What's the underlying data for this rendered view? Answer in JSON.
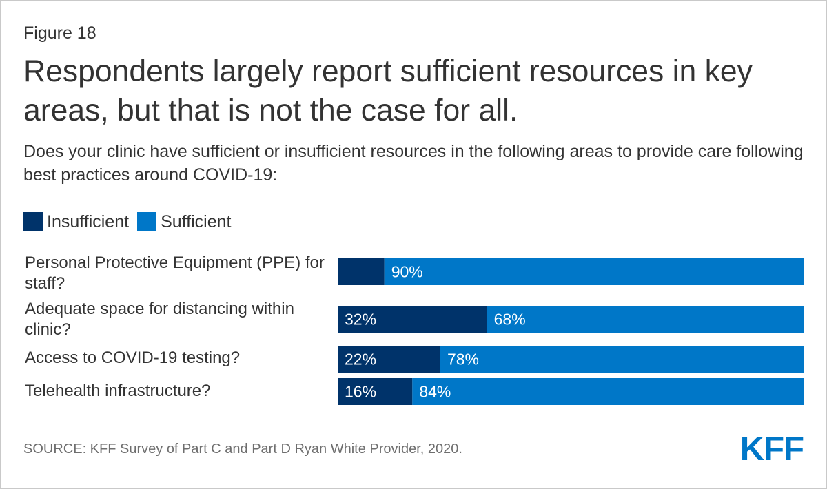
{
  "figure_label": "Figure 18",
  "title": "Respondents largely report sufficient resources in key areas, but that is not the case for all.",
  "subtitle": "Does your clinic have sufficient or insufficient resources in the following areas to provide care following best practices around COVID-19:",
  "source": "SOURCE: KFF Survey of Part C and Part D Ryan White Provider, 2020.",
  "logo": "KFF",
  "colors": {
    "insufficient": "#00336a",
    "sufficient": "#0077c8",
    "text": "#333333"
  },
  "chart_data": {
    "type": "bar",
    "orientation": "horizontal",
    "stacked": true,
    "categories": [
      "Personal Protective Equipment (PPE) for staff?",
      "Adequate space for distancing within clinic?",
      "Access to COVID-19 testing?",
      "Telehealth infrastructure?"
    ],
    "series": [
      {
        "name": "Insufficient",
        "values": [
          10,
          32,
          22,
          16
        ],
        "labels": [
          "",
          "32%",
          "22%",
          "16%"
        ]
      },
      {
        "name": "Sufficient",
        "values": [
          90,
          68,
          78,
          84
        ],
        "labels": [
          "90%",
          "68%",
          "78%",
          "84%"
        ]
      }
    ],
    "xlim": [
      0,
      100
    ],
    "legend_position": "top-left"
  }
}
